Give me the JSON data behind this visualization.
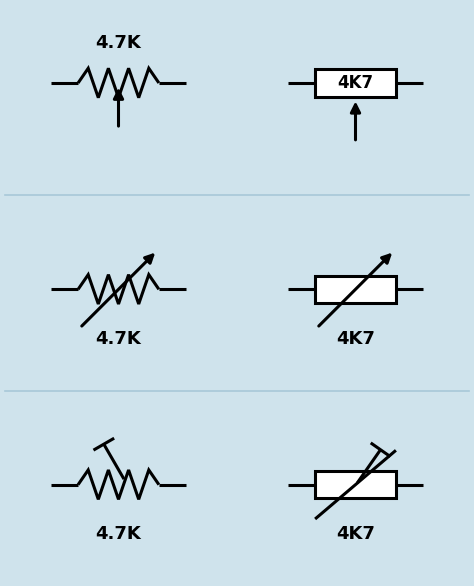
{
  "bg_color": "#cfe3ec",
  "divider_color": "#a8c8d8",
  "line_color": "#000000",
  "label_47k": "4.7K",
  "label_4k7": "4K7",
  "lw": 2.2,
  "figsize": [
    4.74,
    5.86
  ],
  "dpi": 100
}
